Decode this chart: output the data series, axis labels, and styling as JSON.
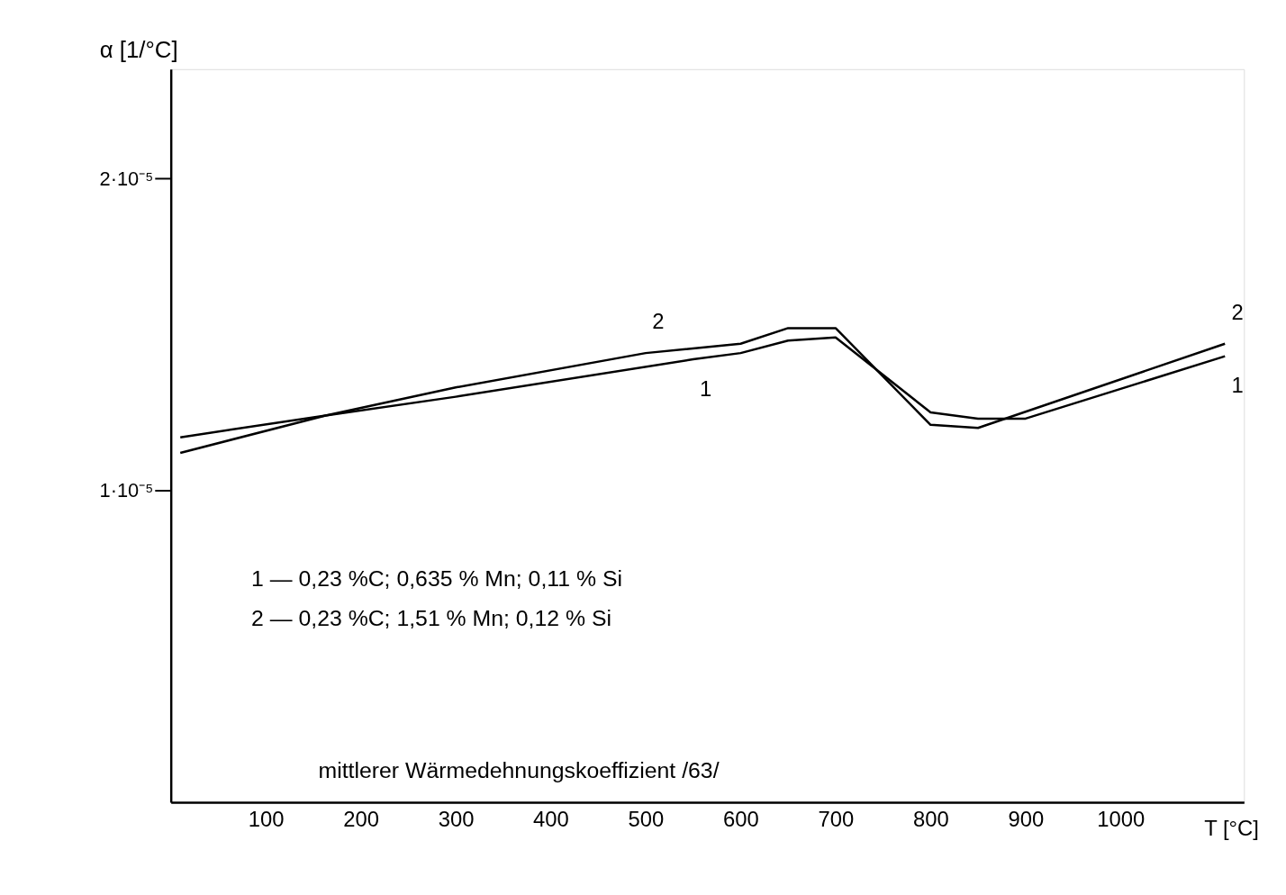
{
  "chart_data": {
    "type": "line",
    "xlabel": "T [°C]",
    "ylabel": "α [1/°C]",
    "x": [
      10,
      163,
      300,
      550,
      600,
      650,
      700,
      800,
      850,
      900,
      1110
    ],
    "series": [
      {
        "name": "1",
        "color": "#000000",
        "values": [
          1.17e-05,
          1.24e-05,
          1.3e-05,
          1.42e-05,
          1.44e-05,
          1.48e-05,
          1.49e-05,
          1.25e-05,
          1.23e-05,
          1.23e-05,
          1.43e-05
        ]
      },
      {
        "name": "2",
        "color": "#000000",
        "x": [
          10,
          163,
          300,
          500,
          600,
          650,
          700,
          800,
          850,
          1110
        ],
        "values": [
          1.12e-05,
          1.24e-05,
          1.33e-05,
          1.44e-05,
          1.47e-05,
          1.52e-05,
          1.52e-05,
          1.21e-05,
          1.2e-05,
          1.47e-05
        ]
      }
    ],
    "xlim": [
      0,
      1130
    ],
    "xticks": [
      100,
      200,
      300,
      400,
      500,
      600,
      700,
      800,
      900,
      1000
    ],
    "ylim": [
      0,
      2.35e-05
    ],
    "yticks": [
      {
        "value": 1e-05,
        "label": "1·10⁻⁵"
      },
      {
        "value": 2e-05,
        "label": "2·10⁻⁵"
      }
    ],
    "grid": false,
    "legend": false,
    "marker": "none",
    "line_style": "solid",
    "annotations": [
      "1 —   0,23 %C; 0,635 % Mn; 0,11 % Si",
      "2 —   0,23 %C; 1,51 % Mn; 0,12 % Si",
      "mittlerer Wärmedehnungskoeffizient /63/"
    ]
  }
}
